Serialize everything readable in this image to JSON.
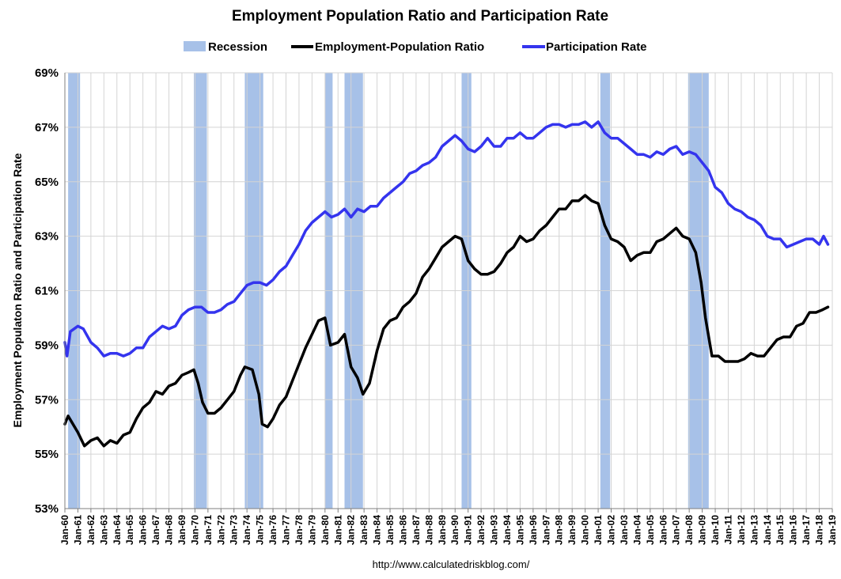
{
  "colors": {
    "recession": "#a7c1e8",
    "epop": "#000000",
    "participation": "#3434ee",
    "grid": "#d4d4d4",
    "axis": "#7f7f7f"
  },
  "chart_data": {
    "type": "line",
    "title": "Employment Population Ratio and Participation Rate",
    "ylabel": "Employment Populaton Ratio and Participation Rate",
    "xlabel": "",
    "source": "http://www.calculatedriskblog.com/",
    "ylim": [
      53,
      69
    ],
    "y_ticks": [
      53,
      55,
      57,
      59,
      61,
      63,
      65,
      67,
      69
    ],
    "y_tick_labels": [
      "53%",
      "55%",
      "57%",
      "59%",
      "61%",
      "63%",
      "65%",
      "67%",
      "69%"
    ],
    "x_range": [
      "1960-01",
      "2019-01"
    ],
    "x_tick_labels": [
      "Jan-60",
      "Jan-61",
      "Jan-62",
      "Jan-63",
      "Jan-64",
      "Jan-65",
      "Jan-66",
      "Jan-67",
      "Jan-68",
      "Jan-69",
      "Jan-70",
      "Jan-71",
      "Jan-72",
      "Jan-73",
      "Jan-74",
      "Jan-75",
      "Jan-76",
      "Jan-77",
      "Jan-78",
      "Jan-79",
      "Jan-80",
      "Jan-81",
      "Jan-82",
      "Jan-83",
      "Jan-84",
      "Jan-85",
      "Jan-86",
      "Jan-87",
      "Jan-88",
      "Jan-89",
      "Jan-90",
      "Jan-91",
      "Jan-92",
      "Jan-93",
      "Jan-94",
      "Jan-95",
      "Jan-96",
      "Jan-97",
      "Jan-98",
      "Jan-99",
      "Jan-00",
      "Jan-01",
      "Jan-02",
      "Jan-03",
      "Jan-04",
      "Jan-05",
      "Jan-06",
      "Jan-07",
      "Jan-08",
      "Jan-09",
      "Jan-10",
      "Jan-11",
      "Jan-12",
      "Jan-13",
      "Jan-14",
      "Jan-15",
      "Jan-16",
      "Jan-17",
      "Jan-18",
      "Jan-19"
    ],
    "grid": true,
    "legend_position": "top",
    "legend": [
      {
        "label": "Recession",
        "kind": "area"
      },
      {
        "label": "Employment-Population Ratio",
        "kind": "line"
      },
      {
        "label": "Participation Rate",
        "kind": "line"
      }
    ],
    "recessions": [
      {
        "start": "1960-04",
        "end": "1961-02"
      },
      {
        "start": "1969-12",
        "end": "1970-11"
      },
      {
        "start": "1973-11",
        "end": "1975-03"
      },
      {
        "start": "1980-01",
        "end": "1980-07"
      },
      {
        "start": "1981-07",
        "end": "1982-11"
      },
      {
        "start": "1990-07",
        "end": "1991-03"
      },
      {
        "start": "2001-03",
        "end": "2001-11"
      },
      {
        "start": "2007-12",
        "end": "2009-06"
      }
    ],
    "series": [
      {
        "name": "Employment-Population Ratio",
        "points": [
          [
            "1960-01",
            56.1
          ],
          [
            "1960-04",
            56.4
          ],
          [
            "1960-07",
            56.2
          ],
          [
            "1961-01",
            55.8
          ],
          [
            "1961-07",
            55.3
          ],
          [
            "1962-01",
            55.5
          ],
          [
            "1962-07",
            55.6
          ],
          [
            "1963-01",
            55.3
          ],
          [
            "1963-07",
            55.5
          ],
          [
            "1964-01",
            55.4
          ],
          [
            "1964-07",
            55.7
          ],
          [
            "1965-01",
            55.8
          ],
          [
            "1965-07",
            56.3
          ],
          [
            "1966-01",
            56.7
          ],
          [
            "1966-07",
            56.9
          ],
          [
            "1967-01",
            57.3
          ],
          [
            "1967-07",
            57.2
          ],
          [
            "1968-01",
            57.5
          ],
          [
            "1968-07",
            57.6
          ],
          [
            "1969-01",
            57.9
          ],
          [
            "1969-07",
            58.0
          ],
          [
            "1969-12",
            58.1
          ],
          [
            "1970-04",
            57.6
          ],
          [
            "1970-08",
            56.9
          ],
          [
            "1971-01",
            56.5
          ],
          [
            "1971-07",
            56.5
          ],
          [
            "1972-01",
            56.7
          ],
          [
            "1972-07",
            57.0
          ],
          [
            "1973-01",
            57.3
          ],
          [
            "1973-07",
            57.9
          ],
          [
            "1973-11",
            58.2
          ],
          [
            "1974-06",
            58.1
          ],
          [
            "1974-12",
            57.2
          ],
          [
            "1975-03",
            56.1
          ],
          [
            "1975-08",
            56.0
          ],
          [
            "1976-01",
            56.3
          ],
          [
            "1976-07",
            56.8
          ],
          [
            "1977-01",
            57.1
          ],
          [
            "1977-07",
            57.7
          ],
          [
            "1978-01",
            58.3
          ],
          [
            "1978-07",
            58.9
          ],
          [
            "1979-01",
            59.4
          ],
          [
            "1979-07",
            59.9
          ],
          [
            "1980-01",
            60.0
          ],
          [
            "1980-06",
            59.0
          ],
          [
            "1981-01",
            59.1
          ],
          [
            "1981-07",
            59.4
          ],
          [
            "1982-01",
            58.2
          ],
          [
            "1982-07",
            57.8
          ],
          [
            "1982-12",
            57.2
          ],
          [
            "1983-06",
            57.6
          ],
          [
            "1984-01",
            58.8
          ],
          [
            "1984-07",
            59.6
          ],
          [
            "1985-01",
            59.9
          ],
          [
            "1985-07",
            60.0
          ],
          [
            "1986-01",
            60.4
          ],
          [
            "1986-07",
            60.6
          ],
          [
            "1987-01",
            60.9
          ],
          [
            "1987-07",
            61.5
          ],
          [
            "1988-01",
            61.8
          ],
          [
            "1988-07",
            62.2
          ],
          [
            "1989-01",
            62.6
          ],
          [
            "1989-07",
            62.8
          ],
          [
            "1990-01",
            63.0
          ],
          [
            "1990-07",
            62.9
          ],
          [
            "1991-01",
            62.1
          ],
          [
            "1991-07",
            61.8
          ],
          [
            "1992-01",
            61.6
          ],
          [
            "1992-07",
            61.6
          ],
          [
            "1993-01",
            61.7
          ],
          [
            "1993-07",
            62.0
          ],
          [
            "1994-01",
            62.4
          ],
          [
            "1994-07",
            62.6
          ],
          [
            "1995-01",
            63.0
          ],
          [
            "1995-07",
            62.8
          ],
          [
            "1996-01",
            62.9
          ],
          [
            "1996-07",
            63.2
          ],
          [
            "1997-01",
            63.4
          ],
          [
            "1997-07",
            63.7
          ],
          [
            "1998-01",
            64.0
          ],
          [
            "1998-07",
            64.0
          ],
          [
            "1999-01",
            64.3
          ],
          [
            "1999-07",
            64.3
          ],
          [
            "2000-01",
            64.5
          ],
          [
            "2000-07",
            64.3
          ],
          [
            "2001-01",
            64.2
          ],
          [
            "2001-07",
            63.4
          ],
          [
            "2002-01",
            62.9
          ],
          [
            "2002-07",
            62.8
          ],
          [
            "2003-01",
            62.6
          ],
          [
            "2003-07",
            62.1
          ],
          [
            "2004-01",
            62.3
          ],
          [
            "2004-07",
            62.4
          ],
          [
            "2005-01",
            62.4
          ],
          [
            "2005-07",
            62.8
          ],
          [
            "2006-01",
            62.9
          ],
          [
            "2006-07",
            63.1
          ],
          [
            "2007-01",
            63.3
          ],
          [
            "2007-07",
            63.0
          ],
          [
            "2008-01",
            62.9
          ],
          [
            "2008-07",
            62.4
          ],
          [
            "2008-12",
            61.3
          ],
          [
            "2009-04",
            60.0
          ],
          [
            "2009-10",
            58.6
          ],
          [
            "2010-04",
            58.6
          ],
          [
            "2010-10",
            58.4
          ],
          [
            "2011-04",
            58.4
          ],
          [
            "2011-10",
            58.4
          ],
          [
            "2012-04",
            58.5
          ],
          [
            "2012-10",
            58.7
          ],
          [
            "2013-04",
            58.6
          ],
          [
            "2013-10",
            58.6
          ],
          [
            "2014-04",
            58.9
          ],
          [
            "2014-10",
            59.2
          ],
          [
            "2015-04",
            59.3
          ],
          [
            "2015-10",
            59.3
          ],
          [
            "2016-04",
            59.7
          ],
          [
            "2016-10",
            59.8
          ],
          [
            "2017-04",
            60.2
          ],
          [
            "2017-10",
            60.2
          ],
          [
            "2018-04",
            60.3
          ],
          [
            "2018-09",
            60.4
          ]
        ]
      },
      {
        "name": "Participation Rate",
        "points": [
          [
            "1960-01",
            59.1
          ],
          [
            "1960-03",
            58.6
          ],
          [
            "1960-06",
            59.5
          ],
          [
            "1961-01",
            59.7
          ],
          [
            "1961-06",
            59.6
          ],
          [
            "1962-01",
            59.1
          ],
          [
            "1962-07",
            58.9
          ],
          [
            "1963-01",
            58.6
          ],
          [
            "1963-07",
            58.7
          ],
          [
            "1964-01",
            58.7
          ],
          [
            "1964-07",
            58.6
          ],
          [
            "1965-01",
            58.7
          ],
          [
            "1965-07",
            58.9
          ],
          [
            "1966-01",
            58.9
          ],
          [
            "1966-07",
            59.3
          ],
          [
            "1967-01",
            59.5
          ],
          [
            "1967-07",
            59.7
          ],
          [
            "1968-01",
            59.6
          ],
          [
            "1968-07",
            59.7
          ],
          [
            "1969-01",
            60.1
          ],
          [
            "1969-07",
            60.3
          ],
          [
            "1970-01",
            60.4
          ],
          [
            "1970-07",
            60.4
          ],
          [
            "1971-01",
            60.2
          ],
          [
            "1971-07",
            60.2
          ],
          [
            "1972-01",
            60.3
          ],
          [
            "1972-07",
            60.5
          ],
          [
            "1973-01",
            60.6
          ],
          [
            "1973-07",
            60.9
          ],
          [
            "1974-01",
            61.2
          ],
          [
            "1974-07",
            61.3
          ],
          [
            "1975-01",
            61.3
          ],
          [
            "1975-07",
            61.2
          ],
          [
            "1976-01",
            61.4
          ],
          [
            "1976-07",
            61.7
          ],
          [
            "1977-01",
            61.9
          ],
          [
            "1977-07",
            62.3
          ],
          [
            "1978-01",
            62.7
          ],
          [
            "1978-07",
            63.2
          ],
          [
            "1979-01",
            63.5
          ],
          [
            "1979-07",
            63.7
          ],
          [
            "1980-01",
            63.9
          ],
          [
            "1980-07",
            63.7
          ],
          [
            "1981-01",
            63.8
          ],
          [
            "1981-07",
            64.0
          ],
          [
            "1982-01",
            63.7
          ],
          [
            "1982-07",
            64.0
          ],
          [
            "1983-01",
            63.9
          ],
          [
            "1983-07",
            64.1
          ],
          [
            "1984-01",
            64.1
          ],
          [
            "1984-07",
            64.4
          ],
          [
            "1985-01",
            64.6
          ],
          [
            "1985-07",
            64.8
          ],
          [
            "1986-01",
            65.0
          ],
          [
            "1986-07",
            65.3
          ],
          [
            "1987-01",
            65.4
          ],
          [
            "1987-07",
            65.6
          ],
          [
            "1988-01",
            65.7
          ],
          [
            "1988-07",
            65.9
          ],
          [
            "1989-01",
            66.3
          ],
          [
            "1989-07",
            66.5
          ],
          [
            "1990-01",
            66.7
          ],
          [
            "1990-07",
            66.5
          ],
          [
            "1991-01",
            66.2
          ],
          [
            "1991-07",
            66.1
          ],
          [
            "1992-01",
            66.3
          ],
          [
            "1992-07",
            66.6
          ],
          [
            "1993-01",
            66.3
          ],
          [
            "1993-07",
            66.3
          ],
          [
            "1994-01",
            66.6
          ],
          [
            "1994-07",
            66.6
          ],
          [
            "1995-01",
            66.8
          ],
          [
            "1995-07",
            66.6
          ],
          [
            "1996-01",
            66.6
          ],
          [
            "1996-07",
            66.8
          ],
          [
            "1997-01",
            67.0
          ],
          [
            "1997-07",
            67.1
          ],
          [
            "1998-01",
            67.1
          ],
          [
            "1998-07",
            67.0
          ],
          [
            "1999-01",
            67.1
          ],
          [
            "1999-07",
            67.1
          ],
          [
            "2000-01",
            67.2
          ],
          [
            "2000-07",
            67.0
          ],
          [
            "2001-01",
            67.2
          ],
          [
            "2001-07",
            66.8
          ],
          [
            "2002-01",
            66.6
          ],
          [
            "2002-07",
            66.6
          ],
          [
            "2003-01",
            66.4
          ],
          [
            "2003-07",
            66.2
          ],
          [
            "2004-01",
            66.0
          ],
          [
            "2004-07",
            66.0
          ],
          [
            "2005-01",
            65.9
          ],
          [
            "2005-07",
            66.1
          ],
          [
            "2006-01",
            66.0
          ],
          [
            "2006-07",
            66.2
          ],
          [
            "2007-01",
            66.3
          ],
          [
            "2007-07",
            66.0
          ],
          [
            "2008-01",
            66.1
          ],
          [
            "2008-07",
            66.0
          ],
          [
            "2009-01",
            65.7
          ],
          [
            "2009-07",
            65.4
          ],
          [
            "2010-01",
            64.8
          ],
          [
            "2010-07",
            64.6
          ],
          [
            "2011-01",
            64.2
          ],
          [
            "2011-07",
            64.0
          ],
          [
            "2012-01",
            63.9
          ],
          [
            "2012-07",
            63.7
          ],
          [
            "2013-01",
            63.6
          ],
          [
            "2013-07",
            63.4
          ],
          [
            "2014-01",
            63.0
          ],
          [
            "2014-07",
            62.9
          ],
          [
            "2015-01",
            62.9
          ],
          [
            "2015-07",
            62.6
          ],
          [
            "2016-01",
            62.7
          ],
          [
            "2016-07",
            62.8
          ],
          [
            "2017-01",
            62.9
          ],
          [
            "2017-07",
            62.9
          ],
          [
            "2018-01",
            62.7
          ],
          [
            "2018-05",
            63.0
          ],
          [
            "2018-09",
            62.7
          ]
        ]
      }
    ]
  }
}
